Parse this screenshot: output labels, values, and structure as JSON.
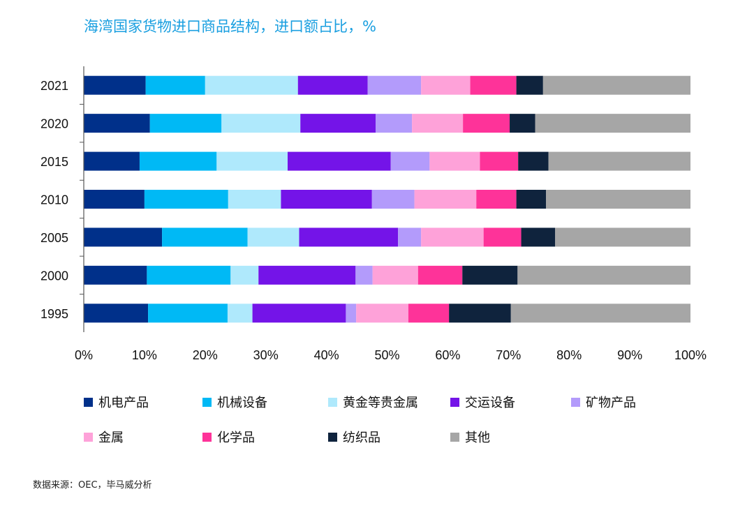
{
  "chart_data": {
    "type": "bar",
    "orientation": "horizontal",
    "stacked": true,
    "title": "海湾国家货物进口商品结构，进口额占比，%",
    "categories": [
      "2021",
      "2020",
      "2015",
      "2010",
      "2005",
      "2000",
      "1995"
    ],
    "xlim": [
      0,
      100
    ],
    "xticks": [
      "0%",
      "10%",
      "20%",
      "30%",
      "40%",
      "50%",
      "60%",
      "70%",
      "80%",
      "90%",
      "100%"
    ],
    "grid": false,
    "legend_position": "bottom",
    "series": [
      {
        "name": "机电产品",
        "color": "#00308a",
        "values": [
          10.2,
          10.9,
          9.2,
          10.0,
          12.9,
          10.4,
          10.6
        ]
      },
      {
        "name": "机械设备",
        "color": "#00b9f5",
        "values": [
          9.8,
          11.8,
          12.7,
          13.8,
          14.1,
          13.8,
          13.1
        ]
      },
      {
        "name": "黄金等贵金属",
        "color": "#afe9fc",
        "values": [
          15.3,
          13.0,
          11.7,
          8.7,
          8.5,
          4.6,
          4.1
        ]
      },
      {
        "name": "交运设备",
        "color": "#7414e8",
        "values": [
          11.5,
          12.4,
          17.0,
          15.0,
          16.3,
          16.0,
          15.4
        ]
      },
      {
        "name": "矿物产品",
        "color": "#b39bfb",
        "values": [
          8.8,
          6.0,
          6.4,
          7.0,
          3.8,
          2.8,
          1.7
        ]
      },
      {
        "name": "金属",
        "color": "#fea2d9",
        "values": [
          8.1,
          8.4,
          8.3,
          10.2,
          10.3,
          7.5,
          8.6
        ]
      },
      {
        "name": "化学品",
        "color": "#fe3399",
        "values": [
          7.6,
          7.7,
          6.3,
          6.6,
          6.2,
          7.3,
          6.7
        ]
      },
      {
        "name": "纺织品",
        "color": "#0f233d",
        "values": [
          4.4,
          4.2,
          5.0,
          4.9,
          5.6,
          9.1,
          10.2
        ]
      },
      {
        "name": "其他",
        "color": "#a6a6a6",
        "values": [
          24.3,
          25.6,
          23.4,
          23.8,
          22.3,
          28.5,
          29.6
        ]
      }
    ]
  },
  "source": "数据来源：OEC，毕马威分析"
}
